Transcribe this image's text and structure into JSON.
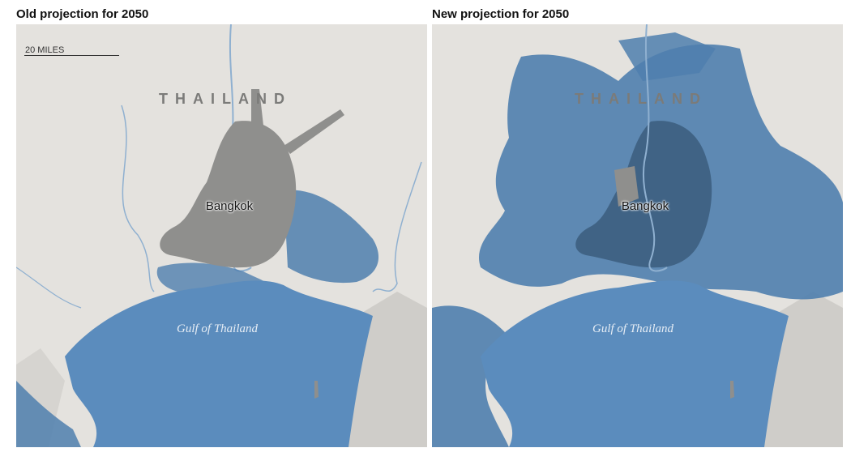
{
  "panels": [
    {
      "title": "Old projection for 2050",
      "scale_label": "20 MILES",
      "country_label": "THAILAND",
      "city_label": "Bangkok",
      "water_label": "Gulf of Thailand",
      "flood_extent": "old"
    },
    {
      "title": "New projection for 2050",
      "country_label": "THAILAND",
      "city_label": "Bangkok",
      "water_label": "Gulf of Thailand",
      "flood_extent": "new"
    }
  ],
  "colors": {
    "land": "#e4e2de",
    "urban": "#8f8f8d",
    "flood": "#4f7fae",
    "sea": "#5b8cbd",
    "rivers": "#8fb0d0",
    "relief": "#c8c6c2"
  }
}
